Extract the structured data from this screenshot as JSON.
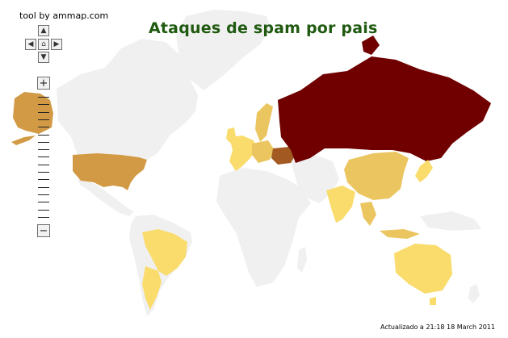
{
  "header": {
    "credit": "tool by ammap.com",
    "title": "Ataques de spam por pais"
  },
  "footer": {
    "updated": "Actualizado a 21:18 18 March 2011"
  },
  "controls": {
    "nav": {
      "up_icon": "arrow-up-icon",
      "left_icon": "arrow-left-icon",
      "home_icon": "home-icon",
      "right_icon": "arrow-right-icon",
      "down_icon": "arrow-down-icon"
    },
    "zoom": {
      "zoom_in": "+",
      "zoom_out": "−",
      "tick_count": 17
    }
  },
  "colors": {
    "background": "#ffffff",
    "land_default": "#f0f0f0",
    "level_high": "#700000",
    "level_mid": "#a25a22",
    "level_medium": "#d29a45",
    "level_low": "#ebc55f",
    "level_lowest": "#f9dc6c",
    "title": "#1f5a10"
  },
  "countries": [
    {
      "name": "Russia",
      "level": "high"
    },
    {
      "name": "Ukraine",
      "level": "mid"
    },
    {
      "name": "United States",
      "level": "medium"
    },
    {
      "name": "Alaska",
      "level": "medium"
    },
    {
      "name": "China",
      "level": "low"
    },
    {
      "name": "India",
      "level": "lowest"
    },
    {
      "name": "Brazil",
      "level": "lowest"
    },
    {
      "name": "Argentina",
      "level": "lowest"
    },
    {
      "name": "Australia",
      "level": "lowest"
    },
    {
      "name": "Western Europe",
      "level": "lowest"
    }
  ]
}
